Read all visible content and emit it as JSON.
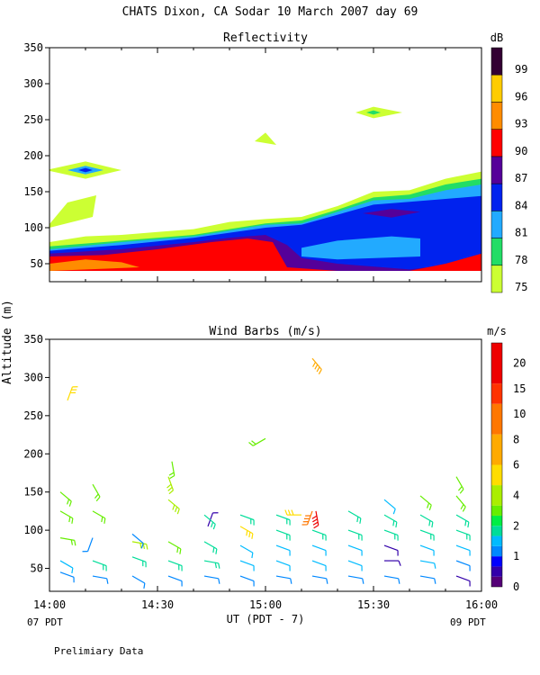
{
  "page": {
    "title": "CHATS Dixon, CA   Sodar  10 March 2007  day  69",
    "shared_ylabel": "Altitude (m)",
    "xlabel": "UT  (PDT - 7)",
    "left_time_note": "07 PDT",
    "right_time_note": "09 PDT",
    "footer": "Prelimiary Data"
  },
  "chart_data": [
    {
      "type": "heatmap",
      "title": "Reflectivity",
      "colorbar_unit": "dB",
      "x_ticks": [
        "14:00",
        "14:30",
        "15:00",
        "15:30",
        "16:00"
      ],
      "x_range_minutes": [
        0,
        120
      ],
      "y_ticks": [
        50,
        100,
        150,
        200,
        250,
        300,
        350
      ],
      "y_range": [
        25,
        350
      ],
      "colorbar_levels": [
        75,
        78,
        81,
        84,
        87,
        90,
        93,
        96,
        99
      ],
      "colorbar_colors": [
        "#ccff33",
        "#22dd66",
        "#22aaff",
        "#0022ee",
        "#550099",
        "#ff0000",
        "#ff8c00",
        "#ffcc00",
        "#330033"
      ],
      "layers": [
        {
          "level": 75,
          "color": "#ccff33",
          "points": [
            [
              0,
              40
            ],
            [
              0,
              80
            ],
            [
              10,
              88
            ],
            [
              20,
              90
            ],
            [
              30,
              94
            ],
            [
              40,
              98
            ],
            [
              50,
              108
            ],
            [
              60,
              112
            ],
            [
              70,
              115
            ],
            [
              80,
              130
            ],
            [
              90,
              150
            ],
            [
              100,
              152
            ],
            [
              110,
              168
            ],
            [
              120,
              178
            ],
            [
              120,
              40
            ]
          ]
        },
        {
          "level": 78,
          "color": "#22dd66",
          "points": [
            [
              0,
              40
            ],
            [
              0,
              74
            ],
            [
              20,
              82
            ],
            [
              40,
              90
            ],
            [
              60,
              106
            ],
            [
              70,
              110
            ],
            [
              80,
              125
            ],
            [
              90,
              142
            ],
            [
              100,
              146
            ],
            [
              110,
              160
            ],
            [
              120,
              168
            ],
            [
              120,
              40
            ]
          ]
        },
        {
          "level": 81,
          "color": "#22aaff",
          "points": [
            [
              0,
              40
            ],
            [
              0,
              70
            ],
            [
              20,
              80
            ],
            [
              40,
              88
            ],
            [
              60,
              104
            ],
            [
              70,
              106
            ],
            [
              80,
              122
            ],
            [
              90,
              138
            ],
            [
              100,
              140
            ],
            [
              110,
              152
            ],
            [
              120,
              160
            ],
            [
              120,
              40
            ]
          ]
        },
        {
          "level": 84,
          "color": "#0022ee",
          "points": [
            [
              0,
              40
            ],
            [
              0,
              68
            ],
            [
              20,
              76
            ],
            [
              40,
              86
            ],
            [
              60,
              100
            ],
            [
              70,
              104
            ],
            [
              80,
              118
            ],
            [
              90,
              132
            ],
            [
              100,
              136
            ],
            [
              110,
              140
            ],
            [
              120,
              144
            ],
            [
              120,
              40
            ]
          ]
        },
        {
          "level": 87,
          "color": "#550099",
          "points": [
            [
              0,
              40
            ],
            [
              0,
              64
            ],
            [
              20,
              70
            ],
            [
              40,
              80
            ],
            [
              50,
              86
            ],
            [
              60,
              90
            ],
            [
              66,
              76
            ],
            [
              70,
              58
            ],
            [
              80,
              50
            ],
            [
              100,
              42
            ],
            [
              110,
              48
            ],
            [
              120,
              60
            ],
            [
              120,
              40
            ]
          ]
        },
        {
          "level": 90,
          "color": "#ff0000",
          "points": [
            [
              0,
              40
            ],
            [
              0,
              60
            ],
            [
              15,
              62
            ],
            [
              30,
              70
            ],
            [
              45,
              80
            ],
            [
              55,
              85
            ],
            [
              62,
              80
            ],
            [
              66,
              45
            ],
            [
              80,
              40
            ],
            [
              100,
              40
            ],
            [
              110,
              50
            ],
            [
              120,
              64
            ],
            [
              120,
              40
            ]
          ]
        },
        {
          "level": 93,
          "color": "#ff8c00",
          "points": [
            [
              0,
              40
            ],
            [
              0,
              50
            ],
            [
              10,
              56
            ],
            [
              20,
              52
            ],
            [
              25,
              45
            ],
            [
              0,
              40
            ]
          ]
        }
      ],
      "patches": [
        {
          "level": 75,
          "color": "#ccff33",
          "points": [
            [
              0,
              105
            ],
            [
              5,
              135
            ],
            [
              13,
              145
            ],
            [
              12,
              115
            ],
            [
              0,
              100
            ]
          ]
        },
        {
          "level": 75,
          "color": "#ccff33",
          "points": [
            [
              -1,
              180
            ],
            [
              10,
              192
            ],
            [
              20,
              180
            ],
            [
              10,
              168
            ]
          ]
        },
        {
          "level": 81,
          "color": "#22aaff",
          "points": [
            [
              5,
              180
            ],
            [
              10,
              186
            ],
            [
              15,
              180
            ],
            [
              10,
              174
            ]
          ]
        },
        {
          "level": 84,
          "color": "#0022ee",
          "points": [
            [
              8,
              180
            ],
            [
              10,
              183
            ],
            [
              12,
              180
            ],
            [
              10,
              177
            ]
          ]
        },
        {
          "level": 75,
          "color": "#ccff33",
          "points": [
            [
              57,
              220
            ],
            [
              60,
              232
            ],
            [
              63,
              215
            ]
          ]
        },
        {
          "level": 75,
          "color": "#ccff33",
          "points": [
            [
              85,
              260
            ],
            [
              90,
              268
            ],
            [
              98,
              260
            ],
            [
              90,
              252
            ]
          ]
        },
        {
          "level": 78,
          "color": "#22dd66",
          "points": [
            [
              88,
              260
            ],
            [
              90,
              263
            ],
            [
              92,
              260
            ],
            [
              90,
              257
            ]
          ]
        },
        {
          "level": 87,
          "color": "#550099",
          "points": [
            [
              87,
              120
            ],
            [
              95,
              126
            ],
            [
              103,
              122
            ],
            [
              95,
              114
            ]
          ]
        },
        {
          "level": 81,
          "color": "#22aaff",
          "points": [
            [
              70,
              72
            ],
            [
              80,
              82
            ],
            [
              95,
              88
            ],
            [
              103,
              85
            ],
            [
              103,
              60
            ],
            [
              80,
              56
            ],
            [
              70,
              60
            ]
          ]
        }
      ]
    },
    {
      "type": "scatter",
      "title": "Wind Barbs (m/s)",
      "colorbar_unit": "m/s",
      "x_ticks": [
        "14:00",
        "14:30",
        "15:00",
        "15:30",
        "16:00"
      ],
      "x_range_minutes": [
        0,
        120
      ],
      "y_ticks": [
        50,
        100,
        150,
        200,
        250,
        300,
        350
      ],
      "y_range": [
        20,
        350
      ],
      "colorbar_labels": [
        0,
        1,
        2,
        4,
        6,
        8,
        10,
        15,
        20
      ],
      "speed_bins": [
        0,
        1,
        2,
        3,
        4,
        5,
        6,
        7,
        8,
        10,
        12,
        15,
        18,
        20,
        24
      ],
      "speed_colors": [
        "#550077",
        "#3300aa",
        "#0000ff",
        "#0088ff",
        "#00bbff",
        "#00dd99",
        "#00ee44",
        "#66ee00",
        "#aaee00",
        "#ffdd00",
        "#ffaa00",
        "#ff7700",
        "#ff3300",
        "#ee0000"
      ],
      "barbs": [
        {
          "t": 3,
          "z": 45,
          "spd": 3,
          "dir": 110
        },
        {
          "t": 3,
          "z": 60,
          "spd": 4,
          "dir": 120
        },
        {
          "t": 3,
          "z": 90,
          "spd": 7,
          "dir": 100
        },
        {
          "t": 3,
          "z": 125,
          "spd": 7,
          "dir": 120
        },
        {
          "t": 3,
          "z": 150,
          "spd": 7,
          "dir": 130
        },
        {
          "t": 5,
          "z": 270,
          "spd": 10,
          "dir": 20
        },
        {
          "t": 12,
          "z": 40,
          "spd": 3,
          "dir": 100
        },
        {
          "t": 12,
          "z": 60,
          "spd": 5,
          "dir": 110
        },
        {
          "t": 12,
          "z": 90,
          "spd": 3,
          "dir": 200
        },
        {
          "t": 12,
          "z": 125,
          "spd": 7,
          "dir": 120
        },
        {
          "t": 12,
          "z": 160,
          "spd": 7,
          "dir": 150
        },
        {
          "t": 23,
          "z": 40,
          "spd": 3,
          "dir": 120
        },
        {
          "t": 23,
          "z": 65,
          "spd": 5,
          "dir": 110
        },
        {
          "t": 23,
          "z": 85,
          "spd": 8,
          "dir": 100
        },
        {
          "t": 23,
          "z": 95,
          "spd": 3,
          "dir": 130
        },
        {
          "t": 33,
          "z": 40,
          "spd": 3,
          "dir": 110
        },
        {
          "t": 33,
          "z": 60,
          "spd": 5,
          "dir": 110
        },
        {
          "t": 33,
          "z": 85,
          "spd": 7,
          "dir": 120
        },
        {
          "t": 33,
          "z": 140,
          "spd": 8,
          "dir": 130
        },
        {
          "t": 33,
          "z": 170,
          "spd": 9,
          "dir": 160
        },
        {
          "t": 34,
          "z": 190,
          "spd": 7,
          "dir": 170
        },
        {
          "t": 43,
          "z": 40,
          "spd": 3,
          "dir": 100
        },
        {
          "t": 43,
          "z": 60,
          "spd": 5,
          "dir": 100
        },
        {
          "t": 43,
          "z": 85,
          "spd": 5,
          "dir": 120
        },
        {
          "t": 44,
          "z": 105,
          "spd": 1,
          "dir": 20
        },
        {
          "t": 43,
          "z": 120,
          "spd": 5,
          "dir": 130
        },
        {
          "t": 53,
          "z": 40,
          "spd": 3,
          "dir": 110
        },
        {
          "t": 53,
          "z": 60,
          "spd": 4,
          "dir": 110
        },
        {
          "t": 53,
          "z": 80,
          "spd": 4,
          "dir": 120
        },
        {
          "t": 53,
          "z": 105,
          "spd": 10,
          "dir": 120
        },
        {
          "t": 53,
          "z": 120,
          "spd": 5,
          "dir": 110
        },
        {
          "t": 60,
          "z": 220,
          "spd": 7,
          "dir": 240
        },
        {
          "t": 63,
          "z": 40,
          "spd": 3,
          "dir": 100
        },
        {
          "t": 63,
          "z": 60,
          "spd": 4,
          "dir": 110
        },
        {
          "t": 63,
          "z": 80,
          "spd": 4,
          "dir": 110
        },
        {
          "t": 63,
          "z": 100,
          "spd": 5,
          "dir": 110
        },
        {
          "t": 63,
          "z": 120,
          "spd": 5,
          "dir": 110
        },
        {
          "t": 70,
          "z": 120,
          "spd": 10,
          "dir": 270
        },
        {
          "t": 73,
          "z": 325,
          "spd": 12,
          "dir": 140
        },
        {
          "t": 73,
          "z": 125,
          "spd": 15,
          "dir": 200
        },
        {
          "t": 74,
          "z": 125,
          "spd": 20,
          "dir": 170
        },
        {
          "t": 73,
          "z": 40,
          "spd": 3,
          "dir": 100
        },
        {
          "t": 73,
          "z": 60,
          "spd": 4,
          "dir": 110
        },
        {
          "t": 73,
          "z": 80,
          "spd": 4,
          "dir": 110
        },
        {
          "t": 73,
          "z": 100,
          "spd": 5,
          "dir": 110
        },
        {
          "t": 83,
          "z": 40,
          "spd": 3,
          "dir": 100
        },
        {
          "t": 83,
          "z": 60,
          "spd": 4,
          "dir": 110
        },
        {
          "t": 83,
          "z": 80,
          "spd": 4,
          "dir": 110
        },
        {
          "t": 83,
          "z": 100,
          "spd": 5,
          "dir": 110
        },
        {
          "t": 83,
          "z": 125,
          "spd": 5,
          "dir": 120
        },
        {
          "t": 93,
          "z": 40,
          "spd": 3,
          "dir": 100
        },
        {
          "t": 93,
          "z": 60,
          "spd": 1,
          "dir": 90
        },
        {
          "t": 93,
          "z": 80,
          "spd": 1,
          "dir": 110
        },
        {
          "t": 93,
          "z": 100,
          "spd": 5,
          "dir": 110
        },
        {
          "t": 93,
          "z": 120,
          "spd": 5,
          "dir": 120
        },
        {
          "t": 93,
          "z": 140,
          "spd": 4,
          "dir": 130
        },
        {
          "t": 103,
          "z": 40,
          "spd": 3,
          "dir": 100
        },
        {
          "t": 103,
          "z": 60,
          "spd": 4,
          "dir": 100
        },
        {
          "t": 103,
          "z": 80,
          "spd": 4,
          "dir": 110
        },
        {
          "t": 103,
          "z": 100,
          "spd": 5,
          "dir": 110
        },
        {
          "t": 103,
          "z": 120,
          "spd": 5,
          "dir": 120
        },
        {
          "t": 103,
          "z": 145,
          "spd": 7,
          "dir": 130
        },
        {
          "t": 113,
          "z": 40,
          "spd": 1,
          "dir": 110
        },
        {
          "t": 113,
          "z": 60,
          "spd": 3,
          "dir": 110
        },
        {
          "t": 113,
          "z": 80,
          "spd": 4,
          "dir": 110
        },
        {
          "t": 113,
          "z": 100,
          "spd": 5,
          "dir": 110
        },
        {
          "t": 113,
          "z": 120,
          "spd": 5,
          "dir": 120
        },
        {
          "t": 113,
          "z": 145,
          "spd": 7,
          "dir": 140
        },
        {
          "t": 113,
          "z": 170,
          "spd": 7,
          "dir": 150
        }
      ]
    }
  ]
}
